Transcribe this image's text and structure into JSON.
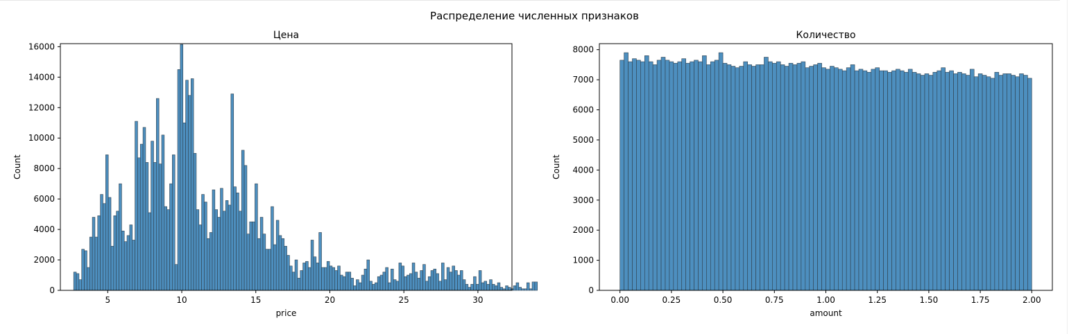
{
  "figure_title": "Распределение численных признаков",
  "chart_data": [
    {
      "type": "histogram",
      "title": "Цена",
      "xlabel": "price",
      "ylabel": "Count",
      "xlim": [
        1.8,
        32.3
      ],
      "ylim": [
        0,
        16200
      ],
      "x_ticks": [
        5,
        10,
        15,
        20,
        25,
        30
      ],
      "y_ticks": [
        0,
        2000,
        4000,
        6000,
        8000,
        10000,
        12000,
        14000,
        16000
      ],
      "bin_width": 0.18,
      "x_start": 2.7,
      "counts": [
        1200,
        1100,
        700,
        2700,
        2600,
        1500,
        3500,
        4800,
        3500,
        4900,
        6300,
        5700,
        8900,
        6100,
        2900,
        4900,
        5200,
        7000,
        3900,
        3200,
        3600,
        4300,
        3300,
        11100,
        8700,
        9600,
        10700,
        8400,
        5100,
        9800,
        8400,
        12600,
        8300,
        10200,
        5500,
        5300,
        7000,
        8900,
        1700,
        14500,
        16150,
        11000,
        13800,
        12800,
        13900,
        9000,
        5300,
        4300,
        6300,
        5800,
        3400,
        3800,
        6600,
        5300,
        4800,
        6700,
        5200,
        5900,
        5600,
        12900,
        6800,
        6400,
        5200,
        9200,
        8200,
        3700,
        4500,
        4500,
        7000,
        3400,
        4800,
        3700,
        2700,
        2700,
        5500,
        3000,
        4600,
        3600,
        3400,
        2900,
        2300,
        1600,
        1200,
        2000,
        800,
        1300,
        1800,
        1900,
        1500,
        3300,
        2200,
        1800,
        3800,
        1500,
        1500,
        1900,
        1600,
        1500,
        1300,
        1600,
        1000,
        900,
        1200,
        1200,
        800,
        300,
        700,
        500,
        1000,
        1400,
        2000,
        600,
        400,
        500,
        900,
        1000,
        1200,
        1500,
        500,
        1400,
        700,
        600,
        1800,
        1600,
        900,
        1000,
        1100,
        1800,
        1200,
        800,
        1300,
        1700,
        600,
        900,
        1300,
        1400,
        1100,
        600,
        1800,
        700,
        1500,
        1200,
        1600,
        1300,
        1000,
        1300,
        700,
        400,
        200,
        400,
        900,
        400,
        1300,
        500,
        600,
        400,
        700,
        400,
        300,
        500,
        200,
        100,
        300,
        200,
        100,
        300,
        500,
        200,
        100,
        100,
        500,
        100,
        550,
        550
      ]
    },
    {
      "type": "histogram",
      "title": "Количество",
      "xlabel": "amount",
      "ylabel": "Count",
      "xlim": [
        -0.1,
        2.1
      ],
      "ylim": [
        0,
        8200
      ],
      "x_ticks": [
        "0.00",
        "0.25",
        "0.50",
        "0.75",
        "1.00",
        "1.25",
        "1.50",
        "1.75",
        "2.00"
      ],
      "y_ticks": [
        0,
        1000,
        2000,
        3000,
        4000,
        5000,
        6000,
        7000,
        8000
      ],
      "bin_width": 0.02,
      "x_start": 0.0,
      "counts": [
        7650,
        7900,
        7600,
        7700,
        7650,
        7600,
        7800,
        7600,
        7500,
        7650,
        7750,
        7650,
        7600,
        7550,
        7600,
        7700,
        7550,
        7600,
        7650,
        7600,
        7800,
        7500,
        7600,
        7650,
        7900,
        7550,
        7500,
        7450,
        7400,
        7450,
        7600,
        7500,
        7450,
        7500,
        7500,
        7750,
        7600,
        7550,
        7600,
        7500,
        7450,
        7550,
        7500,
        7550,
        7600,
        7400,
        7450,
        7500,
        7550,
        7400,
        7350,
        7450,
        7400,
        7350,
        7300,
        7400,
        7500,
        7300,
        7350,
        7300,
        7250,
        7350,
        7400,
        7300,
        7300,
        7250,
        7300,
        7350,
        7300,
        7250,
        7350,
        7250,
        7200,
        7150,
        7200,
        7150,
        7250,
        7300,
        7400,
        7250,
        7300,
        7200,
        7250,
        7200,
        7150,
        7350,
        7100,
        7200,
        7150,
        7100,
        7050,
        7250,
        7150,
        7200,
        7200,
        7150,
        7100,
        7200,
        7150,
        7050
      ]
    }
  ]
}
